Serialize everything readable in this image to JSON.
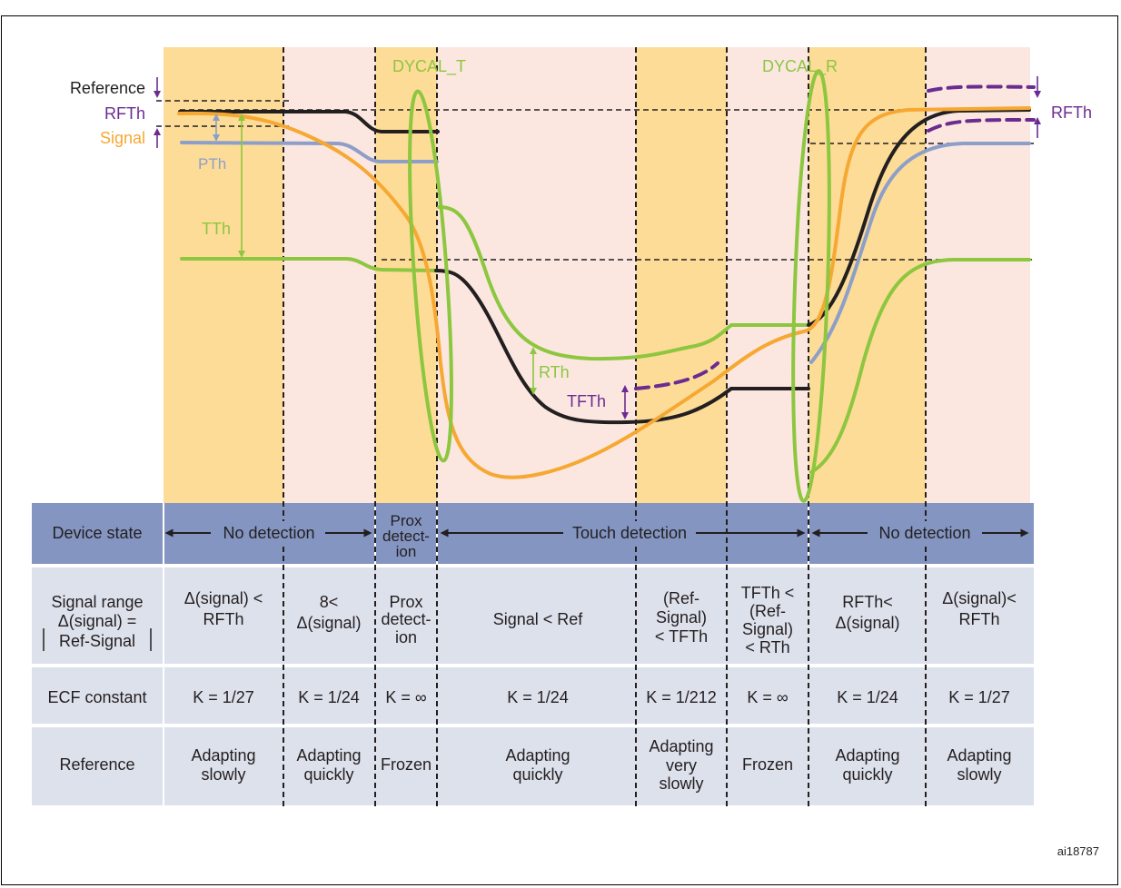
{
  "diagram": {
    "figure_id": "ai18787",
    "labels": {
      "reference": "Reference",
      "rfth_left": "RFTh",
      "signal": "Signal",
      "pth": "PTh",
      "tth": "TTh",
      "rth": "RTh",
      "tfth": "TFTh",
      "rfth_right": "RFTh",
      "dycal_t": "DYCAL_T",
      "dycal_r": "DYCAL_R"
    },
    "colors": {
      "orange_band": "#fddc98",
      "pink_band": "#fbe7e0",
      "signal": "#f6a832",
      "reference": "#231f20",
      "green": "#8dc63f",
      "blue": "#8d9fc8",
      "purple": "#6b2c91",
      "table_header": "#8495c2",
      "table_row": "#dde1ec"
    }
  },
  "table": {
    "device_state": {
      "label": "Device state",
      "cells": [
        "No detection",
        "Prox detect-ion",
        "Touch detection",
        "No detection"
      ]
    },
    "signal_range": {
      "label": [
        "Signal range",
        "Δ(signal) =",
        "Ref-Signal"
      ],
      "cells": [
        [
          "Δ(signal) <",
          "RFTh"
        ],
        [
          "8<",
          "Δ(signal)"
        ],
        [
          "Prox",
          "detect-",
          "ion"
        ],
        [
          "Signal < Ref"
        ],
        [
          "(Ref-",
          "Signal)",
          "< TFTh"
        ],
        [
          "TFTh <",
          "(Ref-",
          "Signal)",
          "< RTh"
        ],
        [
          "RFTh<",
          "Δ(signal)"
        ],
        [
          "Δ(signal)<",
          "RFTh"
        ]
      ]
    },
    "ecf_constant": {
      "label": "ECF constant",
      "cells": [
        "K = 1/27",
        "K = 1/24",
        "K = ∞",
        "K = 1/24",
        "K = 1/212",
        "K = ∞",
        "K = 1/24",
        "K = 1/27"
      ]
    },
    "reference": {
      "label": "Reference",
      "cells": [
        [
          "Adapting",
          "slowly"
        ],
        [
          "Adapting",
          "quickly"
        ],
        [
          "Frozen"
        ],
        [
          "Adapting",
          "quickly"
        ],
        [
          "Adapting",
          "very",
          "slowly"
        ],
        [
          "Frozen"
        ],
        [
          "Adapting",
          "quickly"
        ],
        [
          "Adapting",
          "slowly"
        ]
      ]
    }
  }
}
